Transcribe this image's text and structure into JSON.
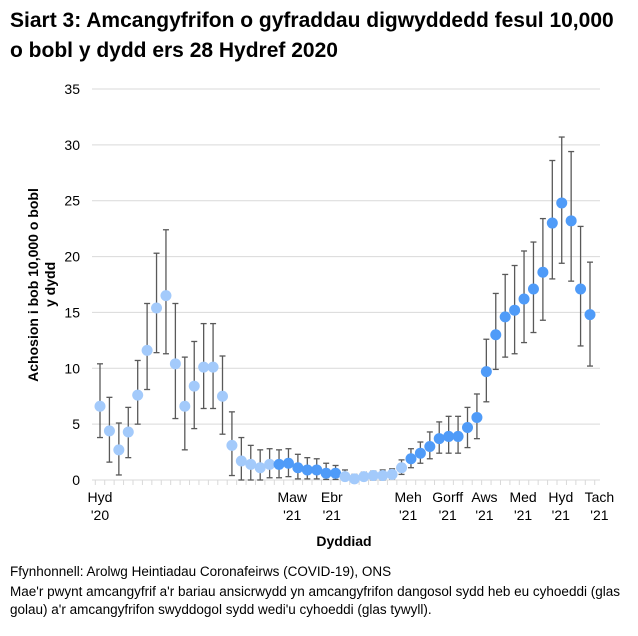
{
  "chart_data": {
    "type": "scatter",
    "title": "Siart 3: Amcangyfrifon o gyfraddau digwyddedd fesul 10,000 o bobl y dydd ers 28 Hydref 2020",
    "xlabel": "Dyddiad",
    "ylabel": "Achosion i bob 10,000 o bobl y dydd",
    "ylim": [
      0,
      35
    ],
    "yticks": [
      0,
      5,
      10,
      15,
      20,
      25,
      30,
      35
    ],
    "grid": true,
    "xticks": [
      {
        "index": 0,
        "line1": "Hyd",
        "line2": "'20"
      },
      {
        "index": 20.4,
        "line1": "Maw",
        "line2": "'21"
      },
      {
        "index": 24.6,
        "line1": "Ebr",
        "line2": "'21"
      },
      {
        "index": 32.7,
        "line1": "Meh",
        "line2": "'21"
      },
      {
        "index": 36.9,
        "line1": "Gorff",
        "line2": "'21"
      },
      {
        "index": 40.8,
        "line1": "Aws",
        "line2": "'21"
      },
      {
        "index": 44.9,
        "line1": "Med",
        "line2": "'21"
      },
      {
        "index": 48.9,
        "line1": "Hyd",
        "line2": "'21"
      },
      {
        "index": 53,
        "line1": "Tach",
        "line2": "'21"
      }
    ],
    "colors": {
      "unpublished": "#a3cafb",
      "published": "#4f9bf8",
      "errorbar": "#595959",
      "grid": "#d9d9d9"
    },
    "points": [
      {
        "v": 6.6,
        "lo": 3.8,
        "hi": 10.4,
        "p": false
      },
      {
        "v": 4.4,
        "lo": 1.6,
        "hi": 7.4,
        "p": false
      },
      {
        "v": 2.7,
        "lo": 0.45,
        "hi": 5.1,
        "p": false
      },
      {
        "v": 4.3,
        "lo": 2.0,
        "hi": 6.5,
        "p": false
      },
      {
        "v": 7.6,
        "lo": 5.0,
        "hi": 10.7,
        "p": false
      },
      {
        "v": 11.6,
        "lo": 8.1,
        "hi": 15.8,
        "p": false
      },
      {
        "v": 15.4,
        "lo": 11.4,
        "hi": 20.3,
        "p": false
      },
      {
        "v": 16.5,
        "lo": 11.3,
        "hi": 22.4,
        "p": false
      },
      {
        "v": 10.4,
        "lo": 5.5,
        "hi": 15.8,
        "p": false
      },
      {
        "v": 6.6,
        "lo": 2.7,
        "hi": 11.0,
        "p": false
      },
      {
        "v": 8.4,
        "lo": 4.6,
        "hi": 12.4,
        "p": false
      },
      {
        "v": 10.1,
        "lo": 6.4,
        "hi": 14.0,
        "p": false
      },
      {
        "v": 10.1,
        "lo": 6.4,
        "hi": 14.0,
        "p": false
      },
      {
        "v": 7.5,
        "lo": 4.1,
        "hi": 11.1,
        "p": false
      },
      {
        "v": 3.1,
        "lo": 0.4,
        "hi": 6.1,
        "p": false
      },
      {
        "v": 1.7,
        "lo": 0,
        "hi": 3.8,
        "p": false
      },
      {
        "v": 1.4,
        "lo": 0,
        "hi": 3.1,
        "p": false
      },
      {
        "v": 1.1,
        "lo": 0,
        "hi": 2.7,
        "p": false
      },
      {
        "v": 1.4,
        "lo": 0.2,
        "hi": 2.8,
        "p": false
      },
      {
        "v": 1.4,
        "lo": 0.2,
        "hi": 2.7,
        "p": true
      },
      {
        "v": 1.5,
        "lo": 0.3,
        "hi": 2.8,
        "p": true
      },
      {
        "v": 1.1,
        "lo": 0.1,
        "hi": 2.3,
        "p": true
      },
      {
        "v": 0.9,
        "lo": 0.1,
        "hi": 2.0,
        "p": true
      },
      {
        "v": 0.9,
        "lo": 0.1,
        "hi": 1.9,
        "p": true
      },
      {
        "v": 0.6,
        "lo": 0.05,
        "hi": 1.5,
        "p": true
      },
      {
        "v": 0.6,
        "lo": 0.05,
        "hi": 1.3,
        "p": true
      },
      {
        "v": 0.3,
        "lo": 0,
        "hi": 0.9,
        "p": false
      },
      {
        "v": 0.1,
        "lo": 0,
        "hi": 0.5,
        "p": false
      },
      {
        "v": 0.3,
        "lo": 0,
        "hi": 0.7,
        "p": false
      },
      {
        "v": 0.4,
        "lo": 0,
        "hi": 0.8,
        "p": false
      },
      {
        "v": 0.4,
        "lo": 0,
        "hi": 0.9,
        "p": false
      },
      {
        "v": 0.5,
        "lo": 0.1,
        "hi": 1.0,
        "p": false
      },
      {
        "v": 1.1,
        "lo": 0.5,
        "hi": 1.8,
        "p": false
      },
      {
        "v": 1.9,
        "lo": 1.1,
        "hi": 2.8,
        "p": true
      },
      {
        "v": 2.4,
        "lo": 1.5,
        "hi": 3.4,
        "p": true
      },
      {
        "v": 3.0,
        "lo": 1.9,
        "hi": 4.3,
        "p": true
      },
      {
        "v": 3.7,
        "lo": 2.4,
        "hi": 5.2,
        "p": true
      },
      {
        "v": 3.9,
        "lo": 2.4,
        "hi": 5.7,
        "p": true
      },
      {
        "v": 3.9,
        "lo": 2.4,
        "hi": 5.7,
        "p": true
      },
      {
        "v": 4.7,
        "lo": 2.9,
        "hi": 6.5,
        "p": true
      },
      {
        "v": 5.6,
        "lo": 3.7,
        "hi": 7.7,
        "p": true
      },
      {
        "v": 9.7,
        "lo": 7.0,
        "hi": 12.6,
        "p": true
      },
      {
        "v": 13.0,
        "lo": 9.9,
        "hi": 16.7,
        "p": true
      },
      {
        "v": 14.6,
        "lo": 11.0,
        "hi": 18.4,
        "p": true
      },
      {
        "v": 15.2,
        "lo": 11.3,
        "hi": 19.2,
        "p": true
      },
      {
        "v": 16.2,
        "lo": 12.3,
        "hi": 20.5,
        "p": true
      },
      {
        "v": 17.1,
        "lo": 13.2,
        "hi": 21.3,
        "p": true
      },
      {
        "v": 18.6,
        "lo": 14.3,
        "hi": 23.4,
        "p": true
      },
      {
        "v": 23.0,
        "lo": 18.0,
        "hi": 28.6,
        "p": true
      },
      {
        "v": 24.8,
        "lo": 19.4,
        "hi": 30.7,
        "p": true
      },
      {
        "v": 23.2,
        "lo": 17.8,
        "hi": 29.4,
        "p": true
      },
      {
        "v": 17.1,
        "lo": 12.0,
        "hi": 22.7,
        "p": true
      },
      {
        "v": 14.8,
        "lo": 10.2,
        "hi": 19.5,
        "p": true
      }
    ]
  },
  "footer": {
    "source": "Ffynhonnell: Arolwg Heintiadau Coronafeirws (COVID-19), ONS",
    "note": "Mae'r pwynt amcangyfrif a'r bariau ansicrwydd yn amcangyfrifon dangosol sydd heb eu cyhoeddi (glas golau) a'r amcangyfrifon swyddogol sydd wedi'u cyhoeddi (glas tywyll)."
  }
}
